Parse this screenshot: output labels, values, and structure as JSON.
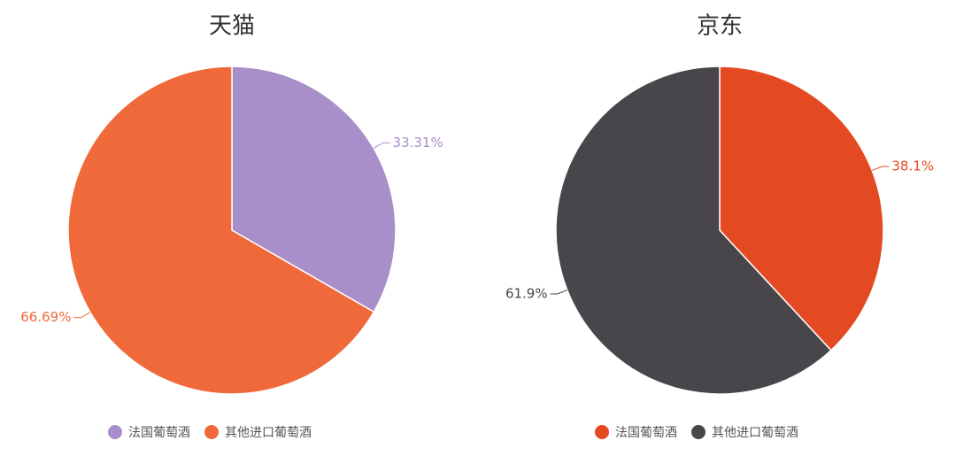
{
  "chart_data": [
    {
      "type": "pie",
      "title": "天猫",
      "categories": [
        "法国葡萄酒",
        "其他进口葡萄酒"
      ],
      "values": [
        33.31,
        66.69
      ],
      "value_labels": [
        "33.31%",
        "66.69%"
      ],
      "colors": [
        "#a98fc9",
        "#f0693a"
      ]
    },
    {
      "type": "pie",
      "title": "京东",
      "categories": [
        "法国葡萄酒",
        "其他进口葡萄酒"
      ],
      "values": [
        38.1,
        61.9
      ],
      "value_labels": [
        "38.1%",
        "61.9%"
      ],
      "colors": [
        "#e34a22",
        "#48464a"
      ]
    }
  ]
}
